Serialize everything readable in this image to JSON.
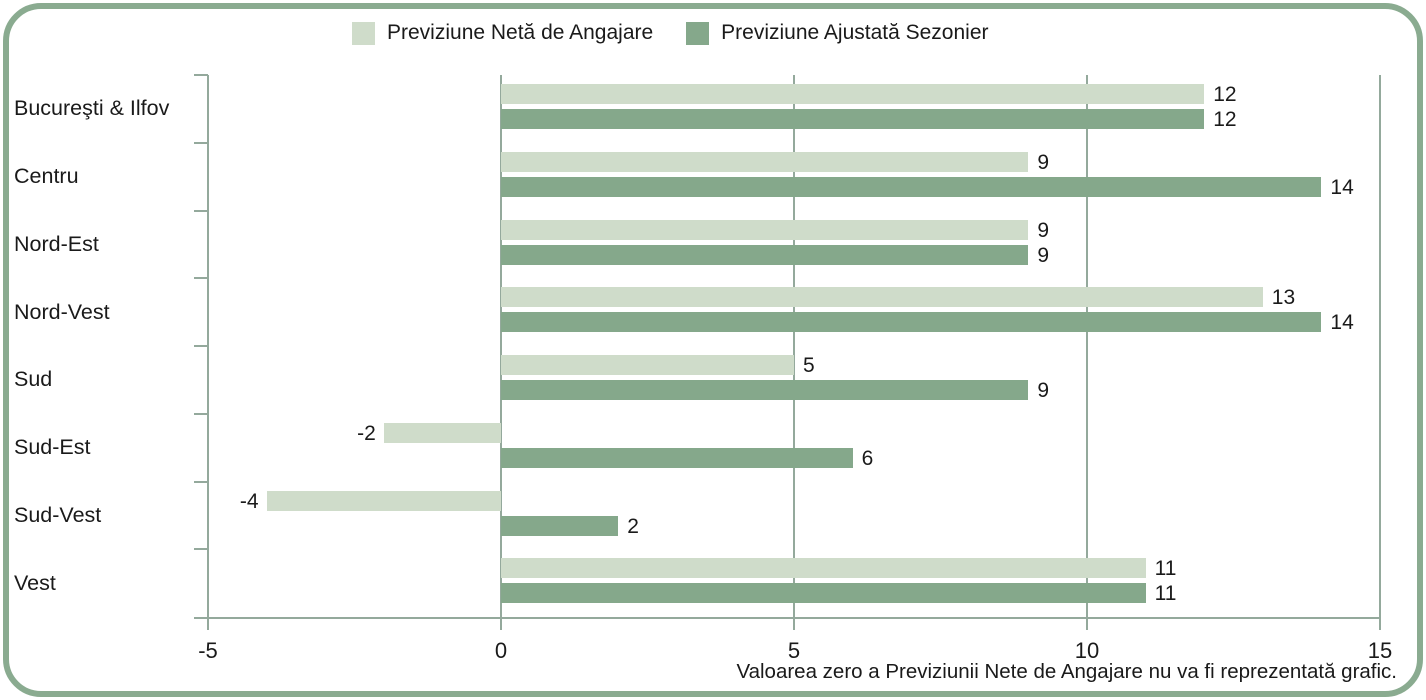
{
  "legend": {
    "items": [
      {
        "label": "Previziune Netă de Angajare",
        "color": "#cfdcca"
      },
      {
        "label": "Previziune Ajustată Sezonier",
        "color": "#85a88b"
      }
    ]
  },
  "footnote": "Valoarea zero a Previziunii Nete de Angajare nu va fi reprezentată grafic.",
  "colors": {
    "frame_border": "#8aab90",
    "axis": "#94a99c",
    "text": "#1a1a1a",
    "net_series": "#cfdcca",
    "adjusted_series": "#85a88b"
  },
  "chart_data": {
    "type": "bar",
    "orientation": "horizontal",
    "title": "",
    "xlabel": "",
    "ylabel": "",
    "categories": [
      "Bucureşti & Ilfov",
      "Centru",
      "Nord-Est",
      "Nord-Vest",
      "Sud",
      "Sud-Est",
      "Sud-Vest",
      "Vest"
    ],
    "series": [
      {
        "name": "Previziune Netă de Angajare",
        "color": "#cfdcca",
        "values": [
          12,
          9,
          9,
          13,
          5,
          -2,
          -4,
          11
        ]
      },
      {
        "name": "Previziune Ajustată Sezonier",
        "color": "#85a88b",
        "values": [
          12,
          14,
          9,
          14,
          9,
          6,
          2,
          11
        ]
      }
    ],
    "xlim": [
      -5,
      15
    ],
    "x_ticks": [
      -5,
      0,
      5,
      10,
      15
    ],
    "gridlines_at": [
      0,
      5,
      10,
      15
    ],
    "grid": "vertical",
    "legend_position": "top-center",
    "value_labels": true,
    "annotation": "Valoarea zero a Previziunii Nete de Angajare nu va fi reprezentată grafic."
  }
}
